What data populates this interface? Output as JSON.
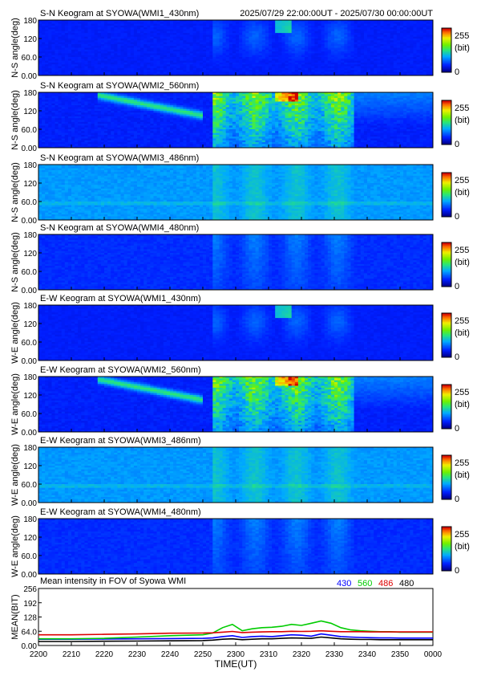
{
  "header": {
    "time_range": "2025/07/29 22:00:00UT - 2025/07/30 00:00:00UT"
  },
  "colorbar": {
    "max_label": "255",
    "unit_label": "(bit)",
    "min_label": "0"
  },
  "keograms": [
    {
      "title": "S-N Keogram at SYOWA(WMI1_430nm)",
      "ylabel": "N-S angle(deg)",
      "yticks": [
        "180",
        "120",
        "60.0",
        "0.00"
      ],
      "intensity": "weak"
    },
    {
      "title": "S-N Keogram at SYOWA(WMI2_560nm)",
      "ylabel": "N-S angle(deg)",
      "yticks": [
        "180",
        "120",
        "60.0",
        "0.00"
      ],
      "intensity": "strong"
    },
    {
      "title": "S-N Keogram at SYOWA(WMI3_486nm)",
      "ylabel": "N-S angle(deg)",
      "yticks": [
        "180",
        "120",
        "60.0",
        "0.00"
      ],
      "intensity": "background"
    },
    {
      "title": "S-N Keogram at SYOWA(WMI4_480nm)",
      "ylabel": "N-S angle(deg)",
      "yticks": [
        "180",
        "120",
        "60.0",
        "0.00"
      ],
      "intensity": "faint"
    },
    {
      "title": "E-W Keogram at SYOWA(WMI1_430nm)",
      "ylabel": "W-E angle(deg)",
      "yticks": [
        "180",
        "120",
        "60.0",
        "0.00"
      ],
      "intensity": "weak"
    },
    {
      "title": "E-W Keogram at SYOWA(WMI2_560nm)",
      "ylabel": "W-E angle(deg)",
      "yticks": [
        "180",
        "120",
        "60.0",
        "0.00"
      ],
      "intensity": "strong"
    },
    {
      "title": "E-W Keogram at SYOWA(WMI3_486nm)",
      "ylabel": "W-E angle(deg)",
      "yticks": [
        "180",
        "120",
        "60.0",
        "0.00"
      ],
      "intensity": "background"
    },
    {
      "title": "E-W Keogram at SYOWA(WMI4_480nm)",
      "ylabel": "W-E angle(deg)",
      "yticks": [
        "180",
        "120",
        "60.0",
        "0.00"
      ],
      "intensity": "faint"
    }
  ],
  "mean_panel": {
    "title": "Mean intensity in FOV of Syowa WMI",
    "ylabel": "MEAN(BIT)",
    "legend": [
      {
        "label": "430",
        "color": "#0000ff"
      },
      {
        "label": "560",
        "color": "#00cc00"
      },
      {
        "label": "486",
        "color": "#dd0000"
      },
      {
        "label": "480",
        "color": "#000000"
      }
    ]
  },
  "xlabel": "TIME(UT)",
  "chart_data": {
    "type": "line",
    "title": "Mean intensity in FOV of Syowa WMI",
    "xlabel": "TIME(UT)",
    "ylabel": "MEAN(BIT)",
    "xlim": [
      0,
      120
    ],
    "ylim": [
      0,
      256
    ],
    "xtick_labels": [
      "2200",
      "2210",
      "2220",
      "2230",
      "2240",
      "2250",
      "2300",
      "2310",
      "2320",
      "2330",
      "2340",
      "2350",
      "0000"
    ],
    "ytick_labels": [
      "256",
      "192",
      "128",
      "64.0",
      "0.00"
    ],
    "ytick_values": [
      256,
      192,
      128,
      64,
      0
    ],
    "x": [
      0,
      10,
      20,
      30,
      40,
      50,
      53,
      56,
      59,
      62,
      65,
      68,
      71,
      74,
      77,
      80,
      83,
      86,
      89,
      92,
      95,
      98,
      101,
      104,
      107,
      110,
      113,
      116,
      120
    ],
    "series": [
      {
        "name": "430",
        "color": "#0000ff",
        "values": [
          28,
          28,
          29,
          30,
          31,
          32,
          34,
          40,
          44,
          36,
          40,
          42,
          40,
          44,
          48,
          46,
          42,
          52,
          46,
          40,
          38,
          36,
          35,
          34,
          34,
          33,
          33,
          33,
          33
        ]
      },
      {
        "name": "560",
        "color": "#00cc00",
        "values": [
          30,
          30,
          32,
          38,
          44,
          48,
          56,
          80,
          95,
          66,
          75,
          80,
          82,
          86,
          95,
          90,
          100,
          110,
          100,
          80,
          70,
          66,
          64,
          62,
          62,
          60,
          60,
          60,
          60
        ]
      },
      {
        "name": "486",
        "color": "#dd0000",
        "values": [
          48,
          48,
          50,
          52,
          55,
          56,
          57,
          60,
          63,
          58,
          60,
          61,
          62,
          62,
          64,
          63,
          64,
          66,
          64,
          62,
          62,
          62,
          61,
          61,
          61,
          61,
          61,
          61,
          61
        ]
      },
      {
        "name": "480",
        "color": "#000000",
        "values": [
          18,
          18,
          19,
          20,
          21,
          22,
          24,
          28,
          30,
          26,
          28,
          30,
          30,
          32,
          34,
          33,
          32,
          38,
          34,
          30,
          28,
          27,
          27,
          26,
          26,
          26,
          26,
          26,
          26
        ]
      }
    ]
  }
}
